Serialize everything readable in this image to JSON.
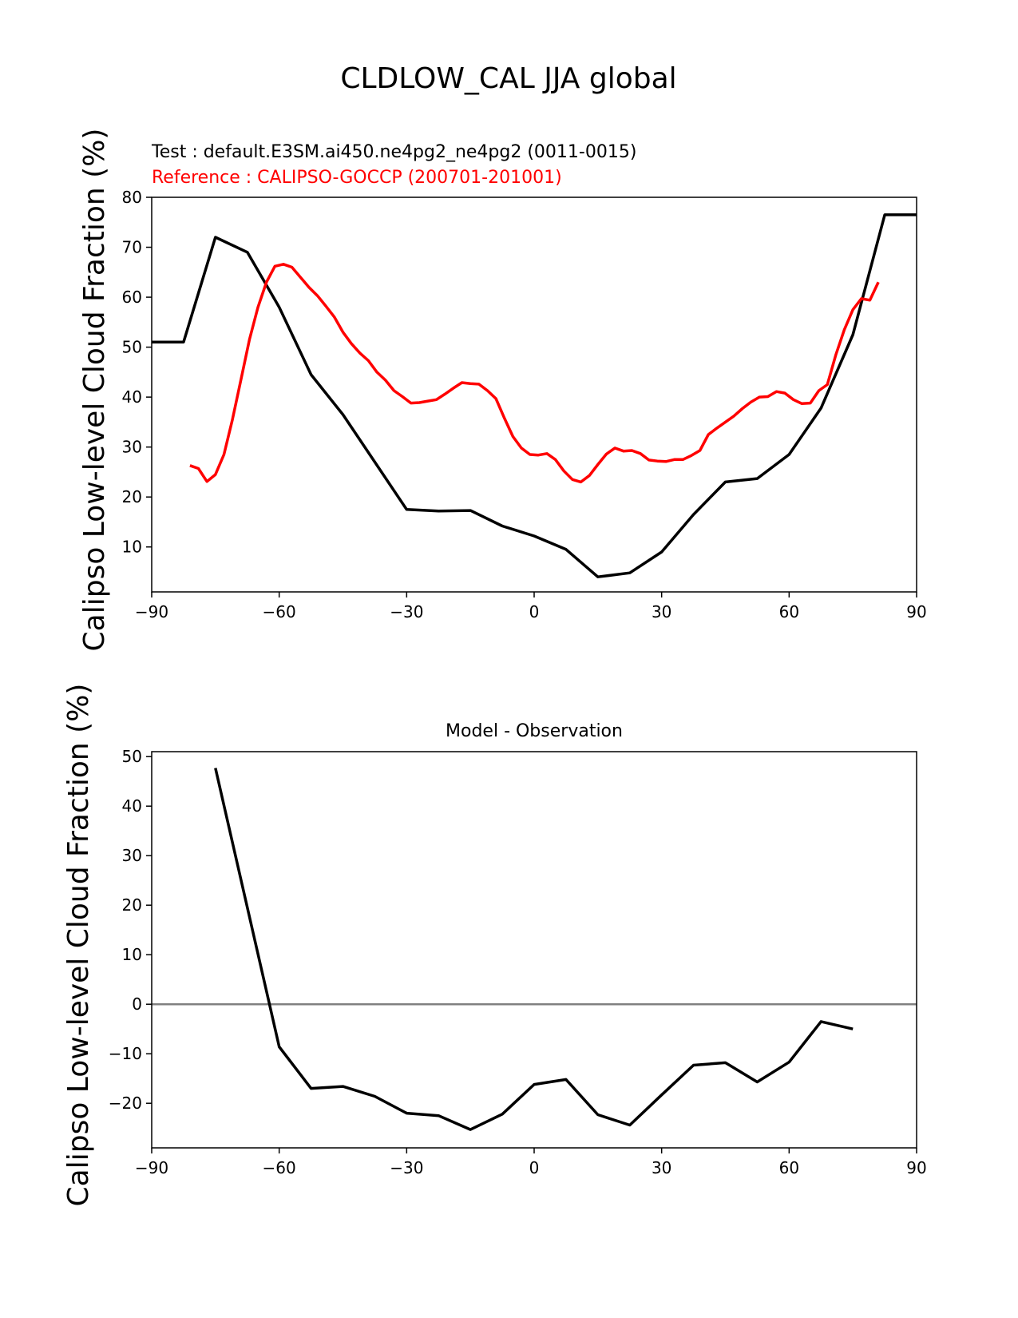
{
  "figure": {
    "suptitle": "CLDLOW_CAL JJA global"
  },
  "chart_data": [
    {
      "type": "line",
      "title": "",
      "test_label": "Test : default.E3SM.ai450.ne4pg2_ne4pg2 (0011-0015)",
      "ref_label": "Reference : CALIPSO-GOCCP (200701-201001)",
      "xlabel": "",
      "ylabel": "Calipso Low-level Cloud Fraction (%)",
      "xlim": [
        -90,
        90
      ],
      "ylim": [
        1,
        80
      ],
      "xticks": [
        -90,
        -60,
        -30,
        0,
        30,
        60,
        90
      ],
      "xtick_labels": [
        "−90",
        "−60",
        "−30",
        "0",
        "30",
        "60",
        "90"
      ],
      "yticks": [
        10,
        20,
        30,
        40,
        50,
        60,
        70,
        80
      ],
      "ytick_labels": [
        "10",
        "20",
        "30",
        "40",
        "50",
        "60",
        "70",
        "80"
      ],
      "grid": false,
      "series": [
        {
          "color": "#000000",
          "x": [
            -90,
            -82.5,
            -75,
            -67.5,
            -60,
            -52.5,
            -45,
            -37.5,
            -30,
            -22.5,
            -15,
            -7.5,
            0,
            7.5,
            15,
            22.5,
            30,
            37.5,
            45,
            52.5,
            60,
            67.5,
            75,
            82.5,
            90
          ],
          "values": [
            51,
            51,
            72,
            69,
            58,
            44.5,
            36.5,
            27,
            17.5,
            17.2,
            17.3,
            14.2,
            12.2,
            9.5,
            4,
            4.8,
            9,
            16.5,
            23,
            23.7,
            28.5,
            37.8,
            52.5,
            76.5,
            76.5
          ]
        },
        {
          "color": "#ff0000",
          "x": [
            -81,
            -79,
            -77,
            -75,
            -73,
            -71,
            -69,
            -67,
            -65,
            -63,
            -61,
            -59,
            -57,
            -55,
            -53,
            -51,
            -49,
            -47,
            -45,
            -43,
            -41,
            -39,
            -37,
            -35,
            -33,
            -31,
            -29,
            -27,
            -25,
            -23,
            -21,
            -19,
            -17,
            -15,
            -13,
            -11,
            -9,
            -7,
            -5,
            -3,
            -1,
            1,
            3,
            5,
            7,
            9,
            11,
            13,
            15,
            17,
            19,
            21,
            23,
            25,
            27,
            29,
            31,
            33,
            35,
            37,
            39,
            41,
            43,
            45,
            47,
            49,
            51,
            53,
            55,
            57,
            59,
            61,
            63,
            65,
            67,
            69,
            71,
            73,
            75,
            77,
            79,
            81
          ],
          "values": [
            26.3,
            25.7,
            23.1,
            24.5,
            28.5,
            35.5,
            43.5,
            51.5,
            58,
            63,
            66.2,
            66.6,
            66,
            64,
            62,
            60.3,
            58.2,
            56,
            53,
            50.7,
            48.8,
            47.3,
            45,
            43.4,
            41.3,
            40.1,
            38.8,
            38.9,
            39.2,
            39.5,
            40.6,
            41.8,
            42.9,
            42.7,
            42.6,
            41.3,
            39.7,
            35.8,
            32.1,
            29.8,
            28.5,
            28.4,
            28.7,
            27.5,
            25.2,
            23.5,
            23,
            24.3,
            26.5,
            28.6,
            29.8,
            29.2,
            29.3,
            28.7,
            27.4,
            27.2,
            27.1,
            27.5,
            27.5,
            28.3,
            29.3,
            32.5,
            33.8,
            35,
            36.2,
            37.7,
            39,
            40,
            40.1,
            41.1,
            40.8,
            39.5,
            38.7,
            38.8,
            41.3,
            42.5,
            48.5,
            53.5,
            57.5,
            59.7,
            59.4,
            63
          ]
        }
      ]
    },
    {
      "type": "line",
      "title": "Model - Observation",
      "xlabel": "",
      "ylabel": "Calipso Low-level Cloud Fraction (%)",
      "xlim": [
        -90,
        90
      ],
      "ylim": [
        -29,
        51
      ],
      "xticks": [
        -90,
        -60,
        -30,
        0,
        30,
        60,
        90
      ],
      "xtick_labels": [
        "−90",
        "−60",
        "−30",
        "0",
        "30",
        "60",
        "90"
      ],
      "yticks": [
        -20,
        -10,
        0,
        10,
        20,
        30,
        40,
        50
      ],
      "ytick_labels": [
        "−20",
        "−10",
        "0",
        "10",
        "20",
        "30",
        "40",
        "50"
      ],
      "grid": false,
      "zero_line_color": "#808080",
      "series": [
        {
          "color": "#000000",
          "x": [
            -75,
            -60,
            -52.5,
            -45,
            -37.5,
            -30,
            -22.5,
            -15,
            -7.5,
            0,
            7.5,
            15,
            22.5,
            30,
            37.5,
            45,
            52.5,
            60,
            67.5,
            75
          ],
          "values": [
            47.7,
            -8.6,
            -17,
            -16.6,
            -18.6,
            -22,
            -22.5,
            -25.3,
            -22.2,
            -16.2,
            -15.2,
            -22.3,
            -24.4,
            -18.3,
            -12.3,
            -11.8,
            -15.7,
            -11.7,
            -3.5,
            -5
          ]
        }
      ]
    }
  ]
}
